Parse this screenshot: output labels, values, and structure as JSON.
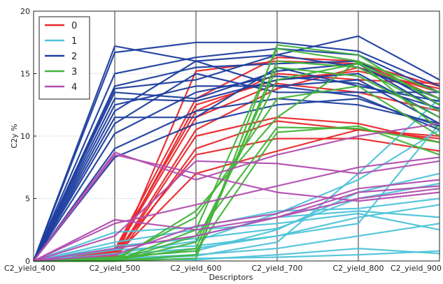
{
  "chart_data": {
    "type": "line",
    "title": "",
    "xlabel": "Descriptors",
    "ylabel": "C2y %",
    "categories": [
      "C2_yield_400",
      "C2_yield_500",
      "C2_yield_600",
      "C2_yield_700",
      "C2_yield_800",
      "C2_yield_900"
    ],
    "ylim": [
      0,
      20
    ],
    "yticks": [
      "0",
      "5",
      "10",
      "15",
      "20"
    ],
    "grid": "vertical lines at each category; dotted horizontal lines",
    "legend_position": "top-left",
    "series": [
      {
        "name": "0",
        "color": "#e8282b",
        "lines": [
          [
            0,
            0,
            15.2,
            16.0,
            15.8,
            14.0
          ],
          [
            0,
            0.5,
            12.5,
            14.5,
            15.2,
            13.8
          ],
          [
            0,
            0.8,
            12.0,
            15.0,
            14.5,
            14.2
          ],
          [
            0,
            0.3,
            10.5,
            13.8,
            15.5,
            13.5
          ],
          [
            0,
            0.2,
            10.0,
            11.5,
            11.0,
            9.5
          ],
          [
            0,
            0.1,
            9.0,
            11.2,
            10.5,
            9.8
          ],
          [
            0,
            0.6,
            8.5,
            9.8,
            9.8,
            8.8
          ],
          [
            0,
            0.4,
            7.0,
            8.8,
            10.5,
            10.0
          ],
          [
            0,
            0.9,
            13.0,
            16.3,
            16.0,
            13.0
          ],
          [
            0,
            0.7,
            11.5,
            14.2,
            13.5,
            12.0
          ]
        ]
      },
      {
        "name": "1",
        "color": "#4fc3d9",
        "lines": [
          [
            0,
            0,
            0.2,
            0.3,
            0.5,
            0.8
          ],
          [
            0,
            0.2,
            0.5,
            1.0,
            2.0,
            3.0
          ],
          [
            0,
            0.5,
            1.0,
            2.0,
            3.5,
            4.5
          ],
          [
            0,
            1.0,
            2.0,
            3.5,
            4.0,
            3.5
          ],
          [
            0,
            1.5,
            2.5,
            3.0,
            3.8,
            2.5
          ],
          [
            0,
            2.3,
            2.7,
            4.0,
            4.2,
            5.0
          ],
          [
            0,
            0.3,
            0.8,
            2.5,
            5.5,
            7.0
          ],
          [
            0,
            0.1,
            0.4,
            1.5,
            7.0,
            13.0
          ],
          [
            0,
            0.6,
            1.6,
            3.8,
            6.5,
            10.5
          ],
          [
            0,
            0.9,
            1.2,
            2.0,
            3.0,
            11.0
          ],
          [
            0,
            0.2,
            0.1,
            0.5,
            1.0,
            0.6
          ],
          [
            0,
            1.2,
            1.8,
            2.6,
            5.0,
            6.2
          ]
        ]
      },
      {
        "name": "2",
        "color": "#1f3f9f",
        "lines": [
          [
            0,
            17.2,
            16.0,
            16.5,
            18.0,
            14.5
          ],
          [
            0,
            16.7,
            17.5,
            17.5,
            16.8,
            14.0
          ],
          [
            0,
            15.0,
            16.3,
            17.0,
            16.5,
            13.5
          ],
          [
            0,
            14.0,
            15.5,
            15.8,
            16.0,
            12.5
          ],
          [
            0,
            13.8,
            14.5,
            16.5,
            15.5,
            13.0
          ],
          [
            0,
            13.5,
            13.0,
            15.2,
            15.8,
            12.0
          ],
          [
            0,
            13.0,
            12.8,
            14.5,
            15.0,
            11.5
          ],
          [
            0,
            12.5,
            14.0,
            14.0,
            14.5,
            11.0
          ],
          [
            0,
            11.5,
            11.5,
            15.5,
            14.0,
            12.8
          ],
          [
            0,
            11.0,
            15.0,
            13.5,
            13.5,
            13.5
          ],
          [
            0,
            10.2,
            13.5,
            14.8,
            14.2,
            12.2
          ],
          [
            0,
            9.0,
            12.0,
            13.0,
            12.5,
            11.0
          ],
          [
            0,
            8.3,
            11.0,
            12.5,
            13.0,
            10.8
          ],
          [
            0,
            12.0,
            16.0,
            14.0,
            13.2,
            10.5
          ]
        ]
      },
      {
        "name": "3",
        "color": "#45b43a",
        "lines": [
          [
            0,
            0,
            0.2,
            17.3,
            16.5,
            12.5
          ],
          [
            0,
            0,
            2.5,
            17.0,
            16.0,
            13.5
          ],
          [
            0,
            0,
            0.5,
            16.0,
            15.5,
            12.0
          ],
          [
            0,
            0.1,
            1.0,
            15.5,
            14.8,
            11.5
          ],
          [
            0,
            0,
            1.5,
            14.5,
            15.8,
            13.0
          ],
          [
            0,
            0.2,
            3.5,
            13.0,
            14.0,
            10.0
          ],
          [
            0,
            0,
            2.0,
            10.7,
            10.6,
            9.5
          ],
          [
            0,
            0.3,
            0.8,
            10.3,
            10.8,
            8.5
          ],
          [
            0,
            0,
            4.0,
            11.5,
            16.0,
            10.5
          ]
        ]
      },
      {
        "name": "4",
        "color": "#b24fb0",
        "lines": [
          [
            0,
            3.3,
            2.5,
            3.5,
            5.5,
            6.0
          ],
          [
            0,
            3.0,
            4.5,
            6.0,
            7.5,
            8.3
          ],
          [
            0,
            8.7,
            6.5,
            8.5,
            10.0,
            11.0
          ],
          [
            0,
            8.5,
            7.0,
            5.5,
            4.8,
            5.5
          ],
          [
            0,
            1.0,
            2.0,
            3.5,
            5.0,
            5.8
          ],
          [
            0,
            2.0,
            8.0,
            7.8,
            7.0,
            8.0
          ],
          [
            0,
            0.5,
            2.8,
            3.8,
            5.8,
            6.5
          ]
        ]
      }
    ]
  }
}
